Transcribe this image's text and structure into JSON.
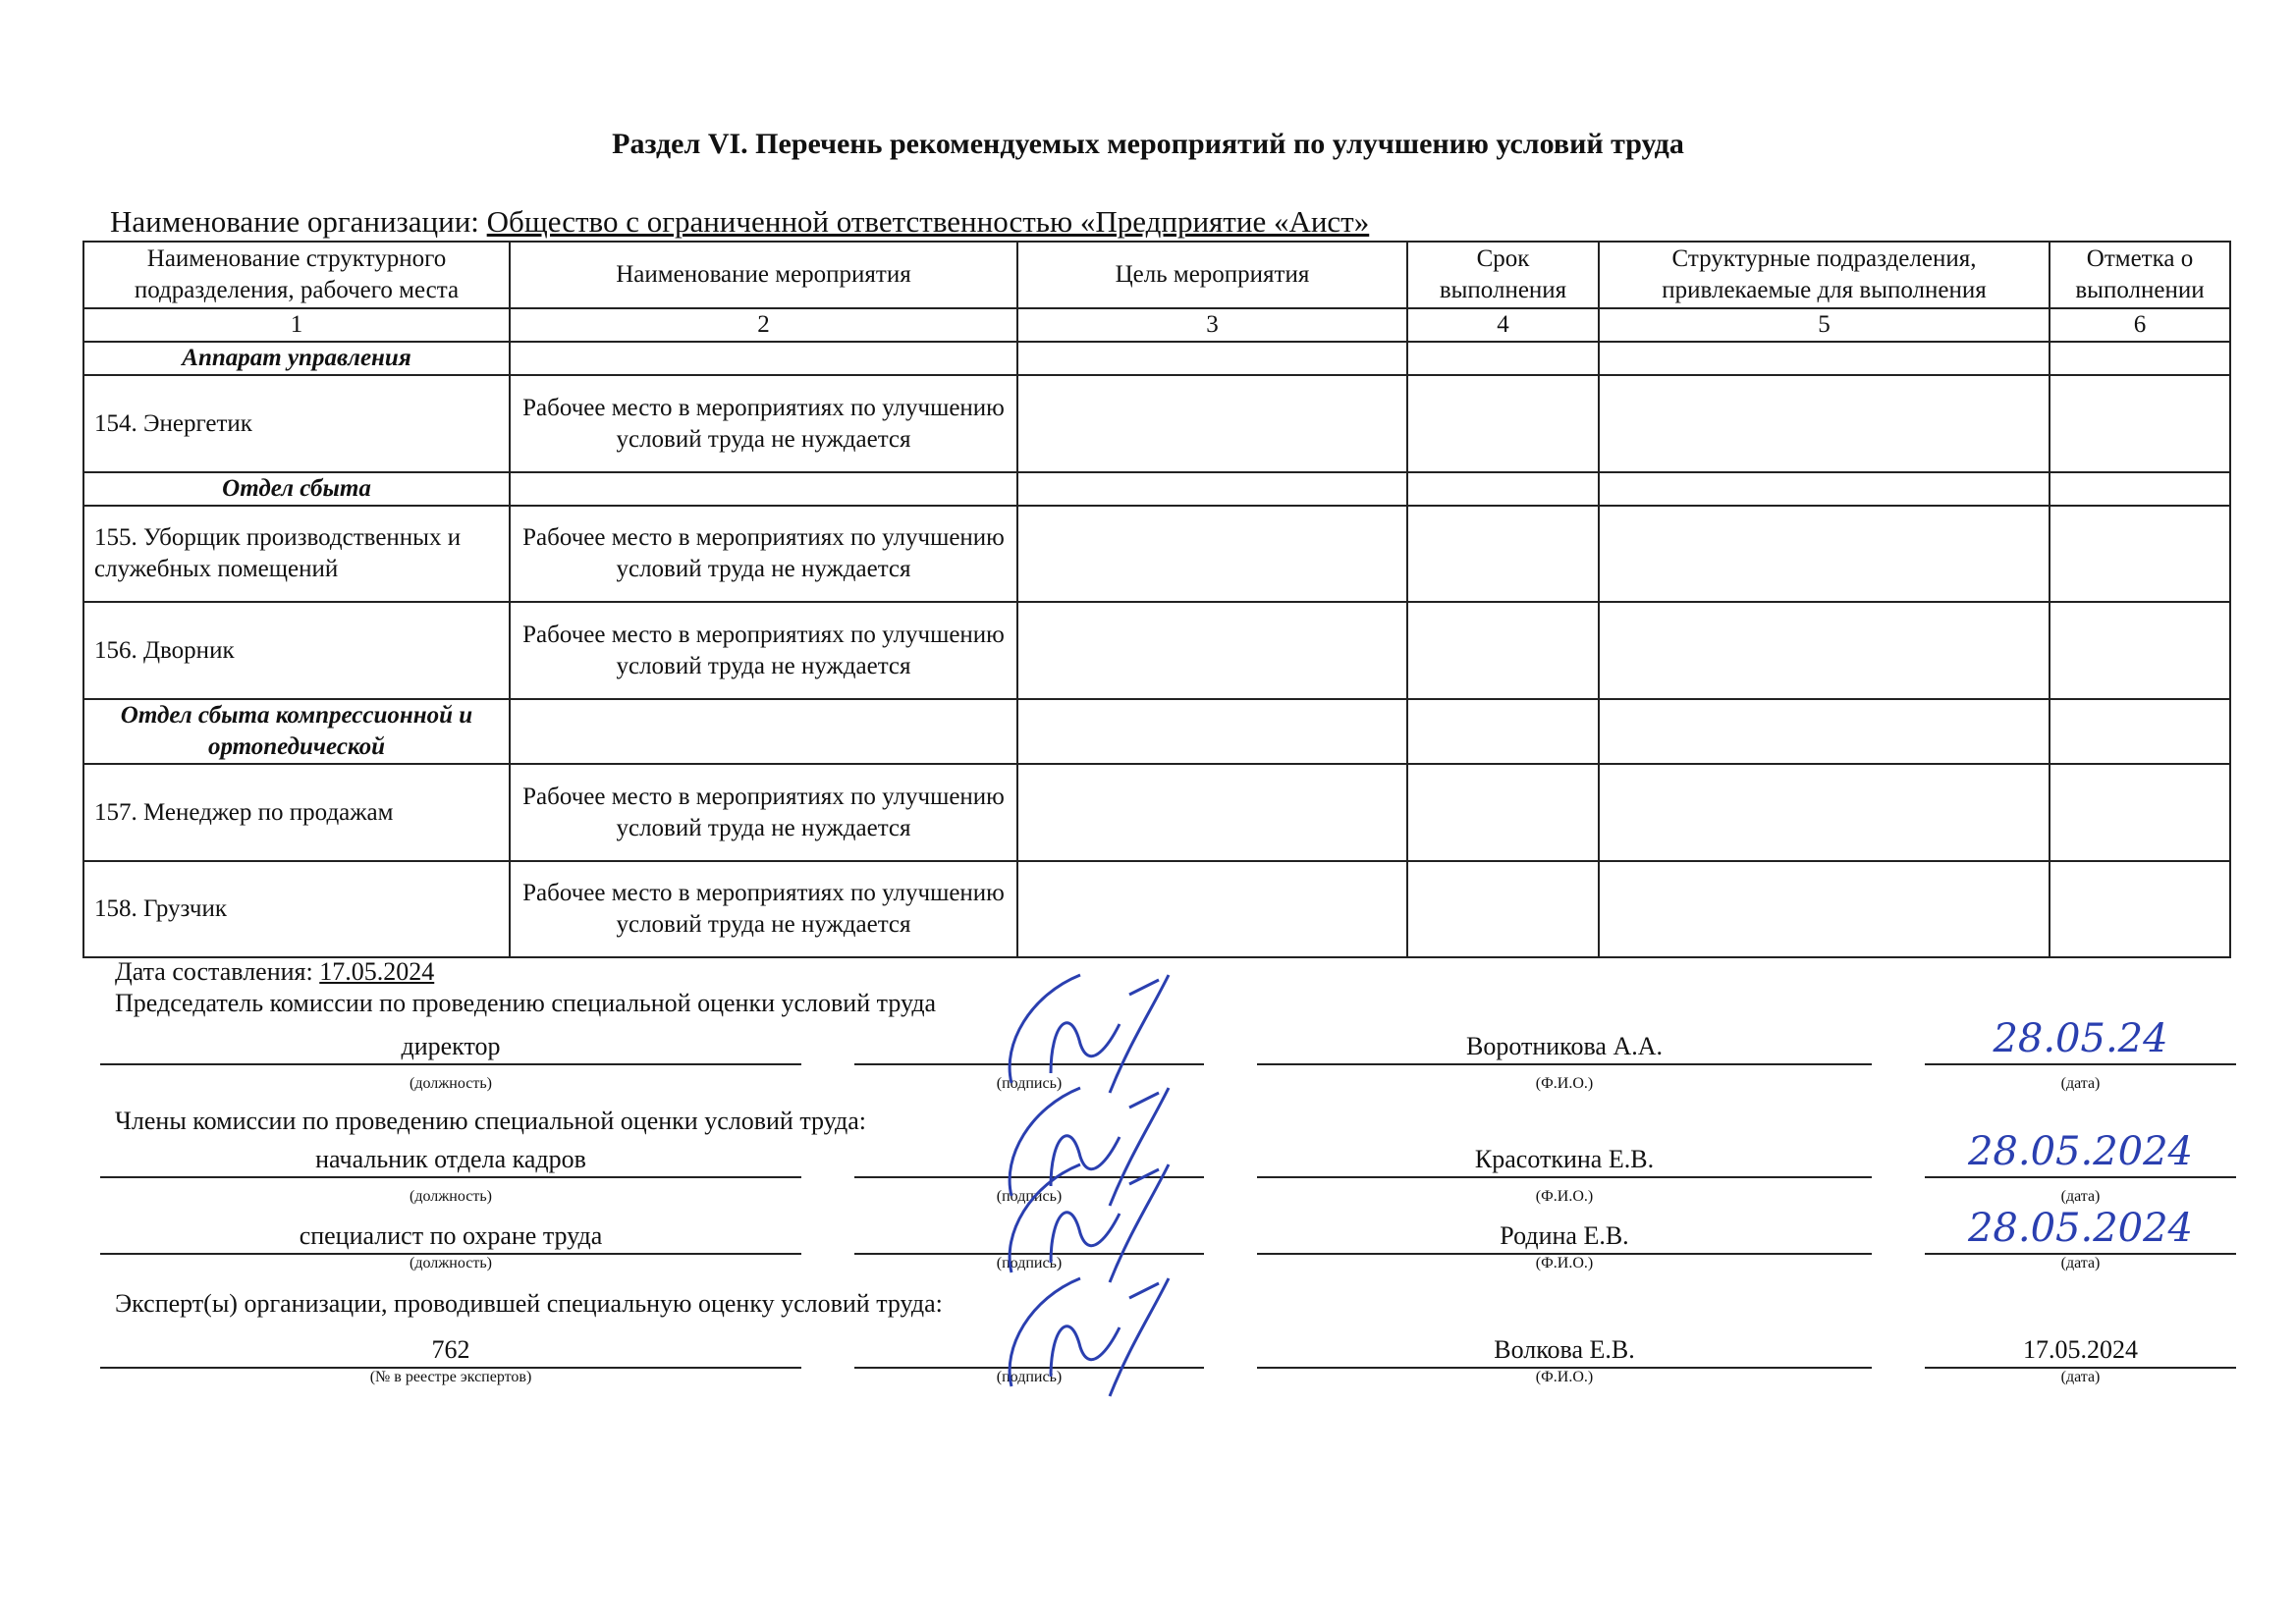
{
  "title": "Раздел VI. Перечень рекомендуемых мероприятий по улучшению условий труда",
  "organization": {
    "label": "Наименование организации:",
    "value": "Общество с ограниченной ответственностью «Предприятие «Аист»"
  },
  "table": {
    "headers": [
      "Наименование структурного подразделения, рабочего места",
      "Наименование мероприятия",
      "Цель мероприятия",
      "Срок выполнения",
      "Структурные подразделения, привлекаемые для выполнения",
      "Отметка о выполнении"
    ],
    "column_numbers": [
      "1",
      "2",
      "3",
      "4",
      "5",
      "6"
    ],
    "rows": [
      {
        "type": "section",
        "name": "Аппарат управления"
      },
      {
        "type": "item",
        "name": "154. Энергетик",
        "measure": "Рабочее место в мероприятиях по улучшению условий труда не нуждается"
      },
      {
        "type": "section",
        "name": "Отдел сбыта"
      },
      {
        "type": "item",
        "name": "155. Уборщик производственных и служебных помещений",
        "measure": "Рабочее место в мероприятиях по улучшению условий труда не нуждается"
      },
      {
        "type": "item",
        "name": "156. Дворник",
        "measure": "Рабочее место в мероприятиях по улучшению условий труда не нуждается"
      },
      {
        "type": "section",
        "name": "Отдел сбыта компрессионной и ортопедической"
      },
      {
        "type": "item",
        "name": "157. Менеджер по продажам",
        "measure": "Рабочее место в мероприятиях по улучшению условий труда не нуждается"
      },
      {
        "type": "item",
        "name": "158. Грузчик",
        "measure": "Рабочее место в мероприятиях по улучшению условий труда не нуждается"
      }
    ]
  },
  "footer": {
    "date_label": "Дата составления:",
    "date_value": "17.05.2024",
    "chairman_label": "Председатель комиссии по проведению специальной оценки условий труда",
    "members_label": "Члены комиссии по проведению специальной оценки условий труда:",
    "experts_label": "Эксперт(ы) организации, проводившей специальную оценку условий труда:",
    "captions": {
      "position": "(должность)",
      "signature": "(подпись)",
      "fio": "(Ф.И.О.)",
      "date": "(дата)",
      "registry": "(№ в реестре экспертов)"
    },
    "signers": [
      {
        "position": "директор",
        "fio": "Воротникова А.А.",
        "date": "28.05.24"
      },
      {
        "position": "начальник отдела кадров",
        "fio": "Красоткина Е.В.",
        "date": "28.05.2024"
      },
      {
        "position": "специалист по охране труда",
        "fio": "Родина Е.В.",
        "date": "28.05.2024"
      },
      {
        "position": "762",
        "fio": "Волкова Е.В.",
        "date": "17.05.2024"
      }
    ]
  },
  "colors": {
    "ink": "#111111",
    "signature_ink": "#2a3fb0"
  }
}
